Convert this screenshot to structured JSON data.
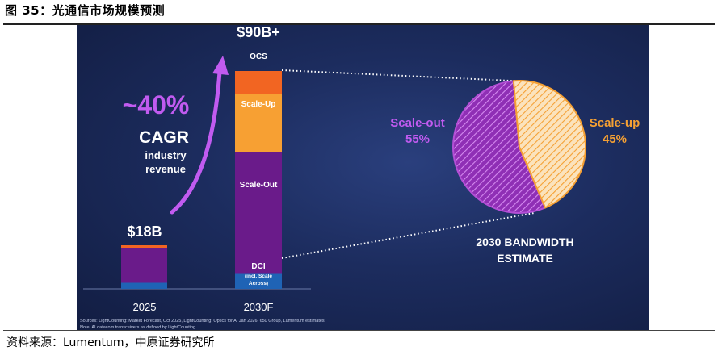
{
  "figure": {
    "title": "图 35：光通信市场规模预测",
    "source": "资料来源：Lumentum，中原证券研究所"
  },
  "slide": {
    "cagr_value": "~40%",
    "cagr_label": "CAGR",
    "cagr_sub1": "industry",
    "cagr_sub2": "revenue",
    "footnote1": "Sources: LightCounting: Market Forecast, Oct 2025, LightCounting: Optics for AI Jan 2026, 650 Group, Lumentum estimates",
    "footnote2": "Note: AI datacom transceivers as defined by LightCounting",
    "pie_caption_line1": "2030 BANDWIDTH",
    "pie_caption_line2": "ESTIMATE"
  },
  "colors": {
    "orange_red": "#f26522",
    "amber": "#f7a033",
    "purple": "#6a1b8a",
    "blue": "#1f63b5",
    "pie_purple": "#b44fd6",
    "pie_orange": "#f5a033",
    "cagr_purple": "#c15bf0"
  },
  "chart_data": [
    {
      "type": "bar",
      "categories": [
        "2025",
        "2030F"
      ],
      "totals": [
        "$18B",
        "$90B+"
      ],
      "series": [
        {
          "name": "DCI",
          "label_sub1": "(incl. Scale",
          "label_sub2": "Across)",
          "values": [
            2.5,
            6.5
          ]
        },
        {
          "name": "Scale-Out",
          "values": [
            14.5,
            50
          ]
        },
        {
          "name": "Scale-Up",
          "values": [
            0,
            24
          ]
        },
        {
          "name": "OCS",
          "values": [
            1,
            9.5
          ]
        }
      ]
    },
    {
      "type": "pie",
      "slices": [
        {
          "name": "Scale-out",
          "label": "55%",
          "value": 55
        },
        {
          "name": "Scale-up",
          "label": "45%",
          "value": 45
        }
      ]
    }
  ]
}
